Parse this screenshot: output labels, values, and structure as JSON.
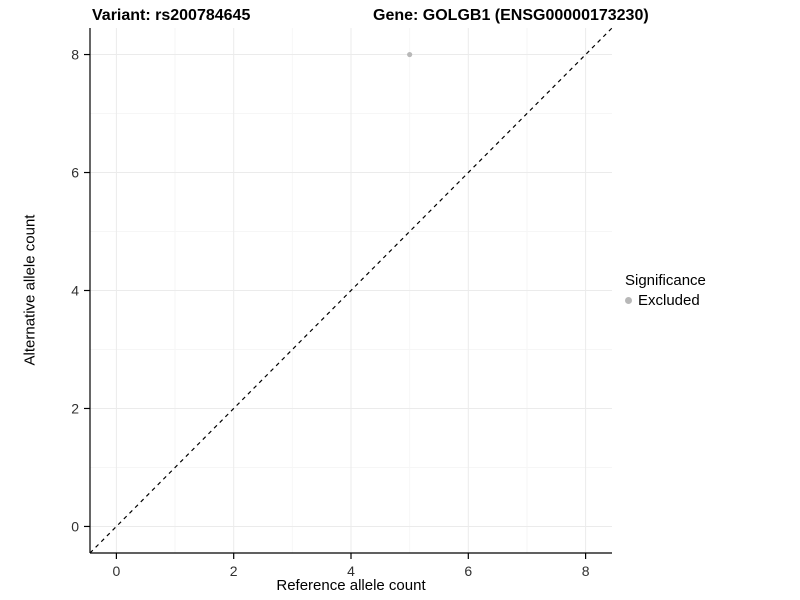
{
  "header": {
    "variant_title": "Variant: rs200784645",
    "gene_title": "Gene: GOLGB1 (ENSG00000173230)"
  },
  "chart_data": {
    "type": "scatter",
    "title": "Variant: rs200784645 — Gene: GOLGB1 (ENSG00000173230)",
    "xlabel": "Reference allele count",
    "ylabel": "Alternative allele count",
    "xlim": [
      -0.45,
      8.45
    ],
    "ylim": [
      -0.45,
      8.45
    ],
    "xticks": [
      0,
      2,
      4,
      6,
      8
    ],
    "yticks": [
      0,
      2,
      4,
      6,
      8
    ],
    "xminor": [
      1,
      3,
      5,
      7
    ],
    "yminor": [
      1,
      3,
      5,
      7
    ],
    "grid": true,
    "series": [
      {
        "name": "Excluded",
        "color": "#b8b8b8",
        "points": [
          {
            "x": 5,
            "y": 8
          }
        ]
      }
    ],
    "reference_line": {
      "slope": 1,
      "intercept": 0,
      "style": "dashed",
      "color": "#000000"
    },
    "legend": {
      "title": "Significance",
      "position": "right",
      "entries": [
        {
          "label": "Excluded",
          "color": "#b8b8b8"
        }
      ]
    },
    "colors": {
      "background": "#ffffff",
      "grid_major": "#ebebeb",
      "grid_minor": "#f6f6f6",
      "axis": "#000000"
    }
  }
}
